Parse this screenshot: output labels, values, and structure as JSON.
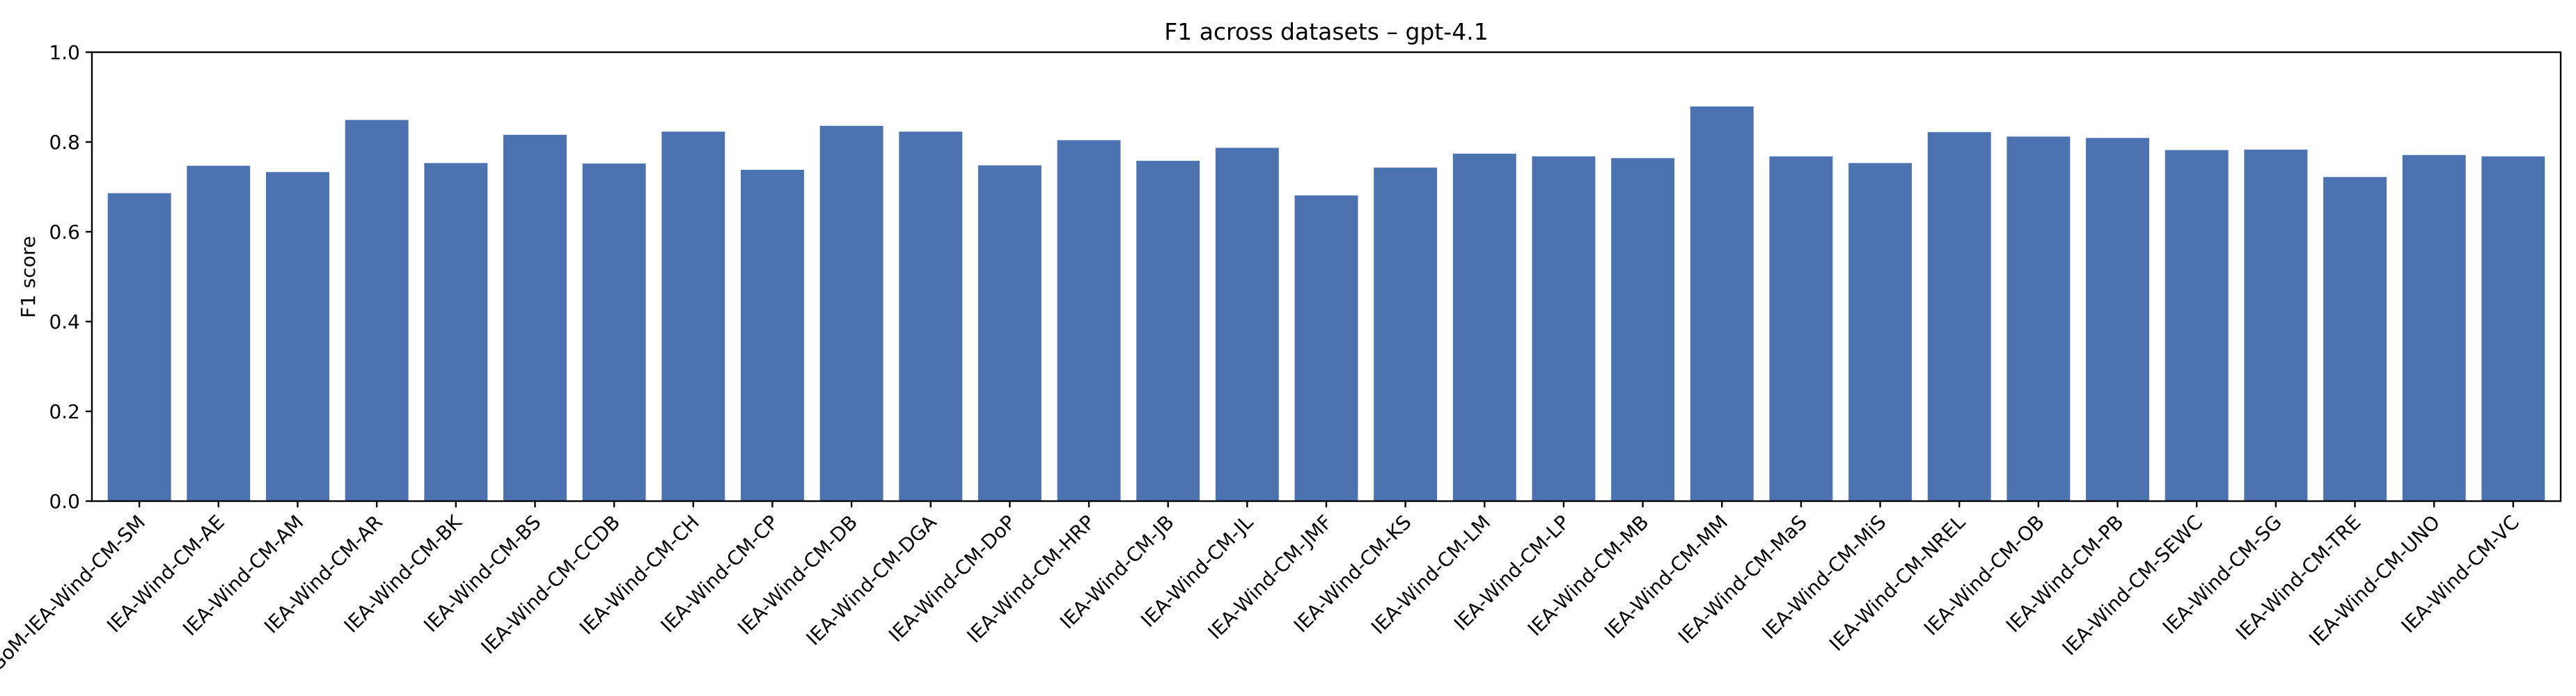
{
  "chart_data": {
    "type": "bar",
    "title": "F1 across datasets – gpt-4.1",
    "xlabel": "",
    "ylabel": "F1 score",
    "ylim": [
      0.0,
      1.0
    ],
    "yticks": [
      0.0,
      0.2,
      0.4,
      0.6,
      0.8,
      1.0
    ],
    "ytick_labels": [
      "0.0",
      "0.2",
      "0.4",
      "0.6",
      "0.8",
      "1.0"
    ],
    "grid": false,
    "bar_color": "#4c72b0",
    "categories": [
      "GoM-IEA-Wind-CM-SM",
      "IEA-Wind-CM-AE",
      "IEA-Wind-CM-AM",
      "IEA-Wind-CM-AR",
      "IEA-Wind-CM-BK",
      "IEA-Wind-CM-BS",
      "IEA-Wind-CM-CCDB",
      "IEA-Wind-CM-CH",
      "IEA-Wind-CM-CP",
      "IEA-Wind-CM-DB",
      "IEA-Wind-CM-DGA",
      "IEA-Wind-CM-DoP",
      "IEA-Wind-CM-HRP",
      "IEA-Wind-CM-JB",
      "IEA-Wind-CM-JL",
      "IEA-Wind-CM-JMF",
      "IEA-Wind-CM-KS",
      "IEA-Wind-CM-LM",
      "IEA-Wind-CM-LP",
      "IEA-Wind-CM-MB",
      "IEA-Wind-CM-MM",
      "IEA-Wind-CM-MaS",
      "IEA-Wind-CM-MiS",
      "IEA-Wind-CM-NREL",
      "IEA-Wind-CM-OB",
      "IEA-Wind-CM-PB",
      "IEA-Wind-CM-SEWC",
      "IEA-Wind-CM-SG",
      "IEA-Wind-CM-TRE",
      "IEA-Wind-CM-UNO",
      "IEA-Wind-CM-VC"
    ],
    "values": [
      0.686,
      0.747,
      0.733,
      0.849,
      0.753,
      0.816,
      0.752,
      0.823,
      0.738,
      0.836,
      0.823,
      0.748,
      0.804,
      0.758,
      0.787,
      0.681,
      0.743,
      0.774,
      0.768,
      0.764,
      0.879,
      0.768,
      0.753,
      0.822,
      0.812,
      0.809,
      0.782,
      0.783,
      0.722,
      0.771,
      0.768
    ]
  }
}
